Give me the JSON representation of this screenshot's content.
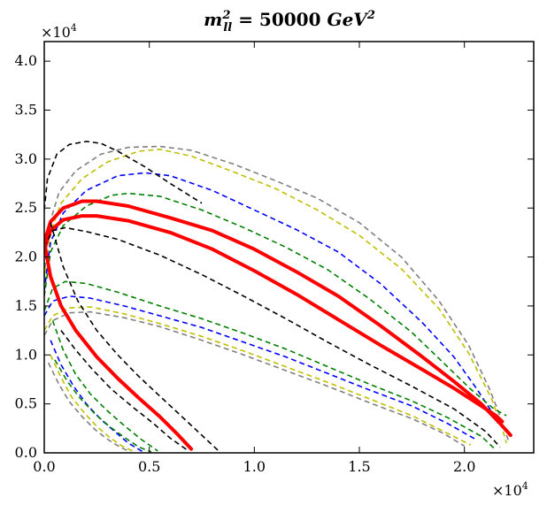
{
  "chart_data": {
    "type": "line",
    "title": "m²_ll = 50000 GeV²",
    "title_parts": {
      "var": "m",
      "sup": "2",
      "sub": "ll",
      "eq": " = 50000 ",
      "unit": "GeV",
      "unit_sup": "2"
    },
    "xlabel": "",
    "ylabel": "",
    "x_multiplier": "×10",
    "x_multiplier_exp": "4",
    "y_multiplier": "×10",
    "y_multiplier_exp": "4",
    "xlim": [
      0,
      23300
    ],
    "ylim": [
      0,
      42000
    ],
    "xticks": [
      0,
      5000,
      10000,
      15000,
      20000
    ],
    "xtick_labels": [
      "0.0",
      "0.5",
      "1.0",
      "1.5",
      "2.0"
    ],
    "yticks": [
      0,
      5000,
      10000,
      15000,
      20000,
      25000,
      30000,
      35000,
      40000
    ],
    "ytick_labels": [
      "0.0",
      "0.5",
      "1.0",
      "1.5",
      "2.0",
      "2.5",
      "3.0",
      "3.5",
      "4.0"
    ],
    "series": [
      {
        "name": "grey-outer",
        "color": "#808080",
        "dash": true,
        "width": 1.6,
        "points": [
          [
            0,
            18000
          ],
          [
            200,
            23000
          ],
          [
            700,
            26600
          ],
          [
            1500,
            28800
          ],
          [
            2700,
            30500
          ],
          [
            4000,
            31200
          ],
          [
            5500,
            31300
          ],
          [
            7000,
            30900
          ],
          [
            9000,
            29500
          ],
          [
            11000,
            27800
          ],
          [
            13000,
            26000
          ],
          [
            15000,
            23500
          ],
          [
            17000,
            20000
          ],
          [
            18800,
            15500
          ],
          [
            20200,
            11000
          ],
          [
            21200,
            6500
          ],
          [
            21800,
            3200
          ],
          [
            22100,
            1200
          ]
        ]
      },
      {
        "name": "yellow-outer",
        "color": "#bfbf00",
        "dash": true,
        "width": 1.6,
        "points": [
          [
            0,
            17500
          ],
          [
            300,
            22500
          ],
          [
            800,
            25500
          ],
          [
            1800,
            28000
          ],
          [
            3000,
            29700
          ],
          [
            4500,
            30800
          ],
          [
            5500,
            31000
          ],
          [
            7000,
            30300
          ],
          [
            9000,
            28700
          ],
          [
            11000,
            27000
          ],
          [
            13000,
            24800
          ],
          [
            15000,
            22200
          ],
          [
            17000,
            18800
          ],
          [
            18800,
            14700
          ],
          [
            20200,
            10200
          ],
          [
            21300,
            5500
          ],
          [
            21800,
            2500
          ],
          [
            22000,
            1000
          ]
        ]
      },
      {
        "name": "blue-outer",
        "color": "#0000ff",
        "dash": true,
        "width": 1.6,
        "points": [
          [
            0,
            16500
          ],
          [
            300,
            21500
          ],
          [
            900,
            24500
          ],
          [
            2000,
            26800
          ],
          [
            3500,
            28300
          ],
          [
            4800,
            28600
          ],
          [
            6000,
            28300
          ],
          [
            8000,
            26800
          ],
          [
            10000,
            24800
          ],
          [
            12000,
            22800
          ],
          [
            14000,
            20500
          ],
          [
            16000,
            17300
          ],
          [
            18000,
            13300
          ],
          [
            19500,
            9800
          ],
          [
            20600,
            6500
          ],
          [
            21300,
            4200
          ],
          [
            21600,
            3000
          ]
        ]
      },
      {
        "name": "green-outer",
        "color": "#008000",
        "dash": true,
        "width": 1.6,
        "points": [
          [
            0,
            16000
          ],
          [
            300,
            20500
          ],
          [
            900,
            23200
          ],
          [
            2000,
            25200
          ],
          [
            3200,
            26300
          ],
          [
            4000,
            26500
          ],
          [
            5500,
            26200
          ],
          [
            7500,
            24800
          ],
          [
            9500,
            23000
          ],
          [
            11500,
            21000
          ],
          [
            13500,
            18700
          ],
          [
            15500,
            15700
          ],
          [
            17500,
            12300
          ],
          [
            19000,
            9200
          ],
          [
            20300,
            6500
          ],
          [
            21400,
            4500
          ],
          [
            22000,
            3800
          ]
        ]
      },
      {
        "name": "red-outer",
        "color": "#ff0000",
        "dash": false,
        "width": 4,
        "points": [
          [
            0,
            21500
          ],
          [
            300,
            23600
          ],
          [
            900,
            25000
          ],
          [
            1800,
            25700
          ],
          [
            2500,
            25700
          ],
          [
            4000,
            25200
          ],
          [
            6000,
            24000
          ],
          [
            8000,
            22700
          ],
          [
            10000,
            20800
          ],
          [
            12000,
            18500
          ],
          [
            14000,
            16000
          ],
          [
            16000,
            13000
          ],
          [
            18000,
            9800
          ],
          [
            19500,
            7300
          ],
          [
            20800,
            5000
          ],
          [
            21700,
            3000
          ],
          [
            22200,
            1800
          ]
        ]
      },
      {
        "name": "red-inner",
        "color": "#ff0000",
        "dash": false,
        "width": 4,
        "points": [
          [
            0,
            20800
          ],
          [
            300,
            22700
          ],
          [
            900,
            23800
          ],
          [
            1800,
            24200
          ],
          [
            2500,
            24200
          ],
          [
            4000,
            23700
          ],
          [
            6000,
            22500
          ],
          [
            8000,
            20800
          ],
          [
            10000,
            18600
          ],
          [
            12000,
            16200
          ],
          [
            14000,
            13600
          ],
          [
            16000,
            11000
          ],
          [
            18000,
            8500
          ],
          [
            19500,
            6600
          ],
          [
            20800,
            4800
          ],
          [
            21500,
            3800
          ],
          [
            21800,
            3200
          ]
        ]
      },
      {
        "name": "black-top",
        "color": "#000000",
        "dash": true,
        "width": 1.6,
        "points": [
          [
            0,
            24800
          ],
          [
            150,
            28000
          ],
          [
            600,
            30500
          ],
          [
            1200,
            31500
          ],
          [
            2000,
            31800
          ],
          [
            2700,
            31600
          ],
          [
            3500,
            30800
          ],
          [
            4800,
            29200
          ],
          [
            6000,
            27500
          ],
          [
            7500,
            25500
          ]
        ]
      },
      {
        "name": "black-inner",
        "color": "#000000",
        "dash": true,
        "width": 1.6,
        "points": [
          [
            0,
            21000
          ],
          [
            400,
            22700
          ],
          [
            1000,
            23000
          ],
          [
            2000,
            22600
          ],
          [
            3500,
            21800
          ],
          [
            5500,
            20200
          ],
          [
            7500,
            18200
          ],
          [
            9500,
            16000
          ],
          [
            11500,
            13700
          ],
          [
            13500,
            11300
          ],
          [
            15500,
            9000
          ],
          [
            17500,
            6800
          ],
          [
            19500,
            4500
          ],
          [
            21000,
            2200
          ],
          [
            21700,
            600
          ]
        ]
      },
      {
        "name": "green-lower",
        "color": "#008000",
        "dash": true,
        "width": 1.6,
        "points": [
          [
            0,
            14500
          ],
          [
            400,
            16800
          ],
          [
            1000,
            17500
          ],
          [
            2000,
            17300
          ],
          [
            3500,
            16400
          ],
          [
            5500,
            15000
          ],
          [
            7500,
            13700
          ],
          [
            9500,
            12200
          ],
          [
            11500,
            10600
          ],
          [
            13500,
            8800
          ],
          [
            15500,
            7000
          ],
          [
            17500,
            5300
          ],
          [
            19200,
            3600
          ],
          [
            20800,
            1700
          ],
          [
            21500,
            300
          ]
        ]
      },
      {
        "name": "blue-lower",
        "color": "#0000ff",
        "dash": true,
        "width": 1.6,
        "points": [
          [
            0,
            14000
          ],
          [
            400,
            15500
          ],
          [
            1200,
            16000
          ],
          [
            2200,
            15800
          ],
          [
            3800,
            15000
          ],
          [
            5500,
            14000
          ],
          [
            7500,
            12800
          ],
          [
            9500,
            11300
          ],
          [
            11500,
            9800
          ],
          [
            13500,
            8100
          ],
          [
            15500,
            6400
          ],
          [
            17500,
            4800
          ],
          [
            19200,
            3000
          ],
          [
            20600,
            1300
          ]
        ]
      },
      {
        "name": "yellow-lower",
        "color": "#bfbf00",
        "dash": true,
        "width": 1.6,
        "points": [
          [
            0,
            12500
          ],
          [
            400,
            14000
          ],
          [
            1200,
            14800
          ],
          [
            2200,
            14900
          ],
          [
            3800,
            14200
          ],
          [
            5500,
            13200
          ],
          [
            7500,
            11900
          ],
          [
            9500,
            10400
          ],
          [
            11500,
            8800
          ],
          [
            13500,
            7200
          ],
          [
            15500,
            5500
          ],
          [
            17500,
            3800
          ],
          [
            19000,
            2200
          ],
          [
            20300,
            800
          ]
        ]
      },
      {
        "name": "grey-lower",
        "color": "#808080",
        "dash": true,
        "width": 1.6,
        "points": [
          [
            0,
            12000
          ],
          [
            400,
            13500
          ],
          [
            1200,
            14300
          ],
          [
            2200,
            14400
          ],
          [
            3800,
            13800
          ],
          [
            5500,
            12900
          ],
          [
            7500,
            11500
          ],
          [
            9500,
            10000
          ],
          [
            11500,
            8400
          ],
          [
            13500,
            6800
          ],
          [
            15500,
            5100
          ],
          [
            17500,
            3500
          ],
          [
            19000,
            2000
          ],
          [
            20000,
            700
          ]
        ]
      },
      {
        "name": "red-left",
        "color": "#ff0000",
        "dash": false,
        "width": 4,
        "points": [
          [
            0,
            21500
          ],
          [
            300,
            18000
          ],
          [
            800,
            15000
          ],
          [
            1500,
            12500
          ],
          [
            2500,
            9800
          ],
          [
            3500,
            7600
          ],
          [
            4500,
            5600
          ],
          [
            5500,
            3700
          ],
          [
            6300,
            2000
          ],
          [
            7000,
            400
          ]
        ]
      },
      {
        "name": "black-left",
        "color": "#000000",
        "dash": true,
        "width": 1.6,
        "points": [
          [
            300,
            23500
          ],
          [
            900,
            19000
          ],
          [
            1600,
            15500
          ],
          [
            2500,
            12500
          ],
          [
            3500,
            10000
          ],
          [
            4500,
            7800
          ],
          [
            5500,
            5800
          ],
          [
            6500,
            3800
          ],
          [
            7500,
            1800
          ],
          [
            8300,
            200
          ]
        ]
      },
      {
        "name": "black-left-2",
        "color": "#000000",
        "dash": true,
        "width": 1.6,
        "points": [
          [
            800,
            12500
          ],
          [
            1500,
            10500
          ],
          [
            2300,
            8500
          ],
          [
            3200,
            6500
          ],
          [
            4200,
            4700
          ],
          [
            5200,
            3000
          ],
          [
            6000,
            1500
          ],
          [
            6800,
            300
          ]
        ]
      },
      {
        "name": "green-left",
        "color": "#008000",
        "dash": true,
        "width": 1.6,
        "points": [
          [
            400,
            13500
          ],
          [
            900,
            10500
          ],
          [
            1500,
            8000
          ],
          [
            2200,
            6000
          ],
          [
            3000,
            4300
          ],
          [
            3800,
            2800
          ],
          [
            4600,
            1400
          ],
          [
            5400,
            200
          ]
        ]
      },
      {
        "name": "blue-left",
        "color": "#0000ff",
        "dash": true,
        "width": 1.6,
        "points": [
          [
            300,
            11500
          ],
          [
            800,
            9000
          ],
          [
            1400,
            6800
          ],
          [
            2000,
            5000
          ],
          [
            2700,
            3400
          ],
          [
            3400,
            2100
          ],
          [
            4000,
            1000
          ],
          [
            4700,
            100
          ]
        ]
      },
      {
        "name": "yellow-left",
        "color": "#bfbf00",
        "dash": true,
        "width": 1.6,
        "points": [
          [
            300,
            10000
          ],
          [
            800,
            7700
          ],
          [
            1300,
            5700
          ],
          [
            1900,
            4100
          ],
          [
            2500,
            2700
          ],
          [
            3100,
            1600
          ],
          [
            3700,
            700
          ],
          [
            4300,
            100
          ]
        ]
      },
      {
        "name": "grey-left",
        "color": "#808080",
        "dash": true,
        "width": 1.6,
        "points": [
          [
            200,
            9200
          ],
          [
            700,
            7000
          ],
          [
            1200,
            5200
          ],
          [
            1800,
            3700
          ],
          [
            2400,
            2400
          ],
          [
            3000,
            1400
          ],
          [
            3600,
            600
          ],
          [
            4100,
            100
          ]
        ]
      },
      {
        "name": "green-left-2",
        "color": "#008000",
        "dash": true,
        "width": 1.6,
        "points": [
          [
            500,
            9500
          ],
          [
            1100,
            7300
          ],
          [
            1700,
            5600
          ],
          [
            2400,
            4000
          ],
          [
            3100,
            2700
          ],
          [
            3800,
            1600
          ],
          [
            4500,
            600
          ],
          [
            5100,
            100
          ]
        ]
      }
    ]
  }
}
